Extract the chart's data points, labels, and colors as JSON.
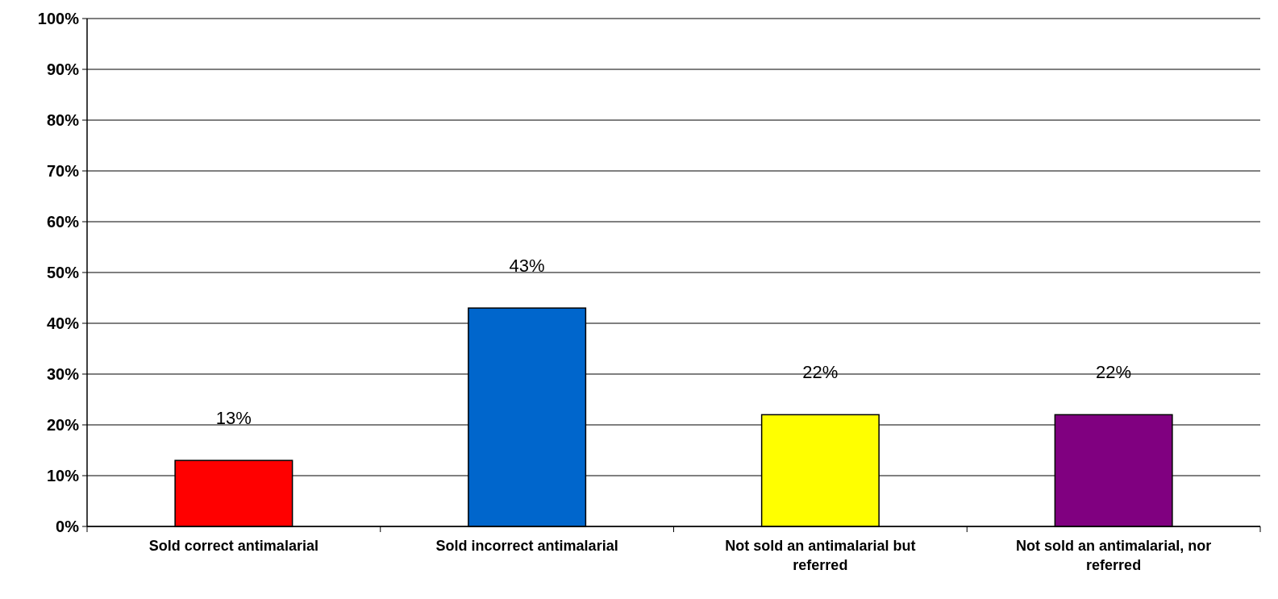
{
  "chart_data": {
    "type": "bar",
    "categories": [
      "Sold correct antimalarial",
      "Sold incorrect antimalarial",
      "Not sold an antimalarial but referred",
      "Not sold an antimalarial, nor referred"
    ],
    "values": [
      13,
      43,
      22,
      22
    ],
    "colors": [
      "#ff0000",
      "#0066cc",
      "#ffff00",
      "#800080"
    ],
    "value_labels": [
      "13%",
      "43%",
      "22%",
      "22%"
    ],
    "ylim": [
      0,
      100
    ],
    "yticks": [
      {
        "value": 0,
        "label": "0%"
      },
      {
        "value": 10,
        "label": "10%"
      },
      {
        "value": 20,
        "label": "20%"
      },
      {
        "value": 30,
        "label": "30%"
      },
      {
        "value": 40,
        "label": "40%"
      },
      {
        "value": 50,
        "label": "50%"
      },
      {
        "value": 60,
        "label": "60%"
      },
      {
        "value": 70,
        "label": "70%"
      },
      {
        "value": 80,
        "label": "80%"
      },
      {
        "value": 90,
        "label": "90%"
      },
      {
        "value": 100,
        "label": "100%"
      }
    ],
    "grid": "y"
  }
}
